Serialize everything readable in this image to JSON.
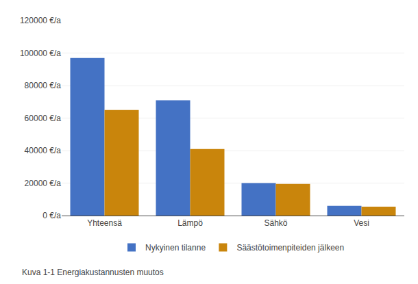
{
  "chart_data": {
    "type": "bar",
    "categories": [
      "Yhteensä",
      "Lämpö",
      "Sähkö",
      "Vesi"
    ],
    "series": [
      {
        "name": "Nykyinen tilanne",
        "color": "#4472C4",
        "values": [
          97000,
          71000,
          20000,
          6000
        ]
      },
      {
        "name": "Säästötoimenpiteiden jälkeen",
        "color": "#C9850C",
        "values": [
          65000,
          41000,
          19500,
          5500
        ]
      }
    ],
    "ylim": [
      0,
      120000
    ],
    "yticks": [
      {
        "value": 0,
        "label": "0 €/a"
      },
      {
        "value": 20000,
        "label": "20000 €/a"
      },
      {
        "value": 40000,
        "label": "40000 €/a"
      },
      {
        "value": 60000,
        "label": "60000 €/a"
      },
      {
        "value": 80000,
        "label": "80000 €/a"
      },
      {
        "value": 100000,
        "label": "100000 €/a"
      },
      {
        "value": 120000,
        "label": "120000 €/a"
      }
    ],
    "grid": true,
    "legend": "bottom",
    "caption": "Kuva 1-1 Energiakustannusten muutos"
  }
}
